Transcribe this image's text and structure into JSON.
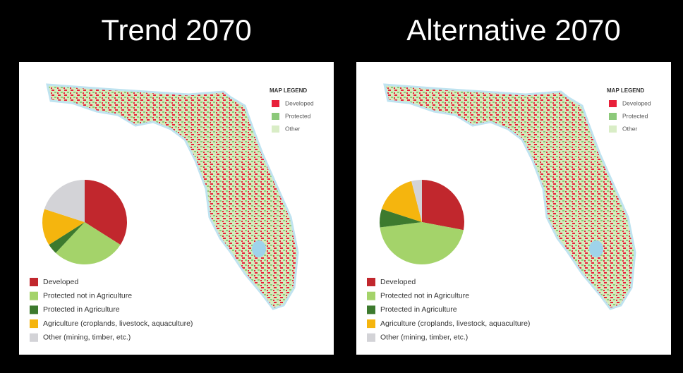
{
  "chart_data": [
    {
      "type": "pie",
      "title": "Trend 2070",
      "categories": [
        "Developed",
        "Protected not in Agriculture",
        "Protected in Agriculture",
        "Agriculture (croplands, livestock, aquaculture)",
        "Other (mining, timber, etc.)"
      ],
      "values": [
        34,
        28,
        4,
        14,
        20
      ],
      "colors": [
        "#c1272d",
        "#a4d36a",
        "#3d7a2e",
        "#f5b50e",
        "#d3d3d7"
      ],
      "map_legend": {
        "title": "MAP LEGEND",
        "labels": [
          "Developed",
          "Protected",
          "Other"
        ],
        "colors": [
          "#e8203a",
          "#8cc97a",
          "#d9edc6"
        ]
      }
    },
    {
      "type": "pie",
      "title": "Alternative 2070",
      "categories": [
        "Developed",
        "Protected not in Agriculture",
        "Protected in Agriculture",
        "Agriculture (croplands, livestock, aquaculture)",
        "Other (mining, timber, etc.)"
      ],
      "values": [
        28,
        45,
        7,
        16,
        4
      ],
      "colors": [
        "#c1272d",
        "#a4d36a",
        "#3d7a2e",
        "#f5b50e",
        "#d3d3d7"
      ],
      "map_legend": {
        "title": "MAP LEGEND",
        "labels": [
          "Developed",
          "Protected",
          "Other"
        ],
        "colors": [
          "#e8203a",
          "#8cc97a",
          "#d9edc6"
        ]
      }
    }
  ]
}
